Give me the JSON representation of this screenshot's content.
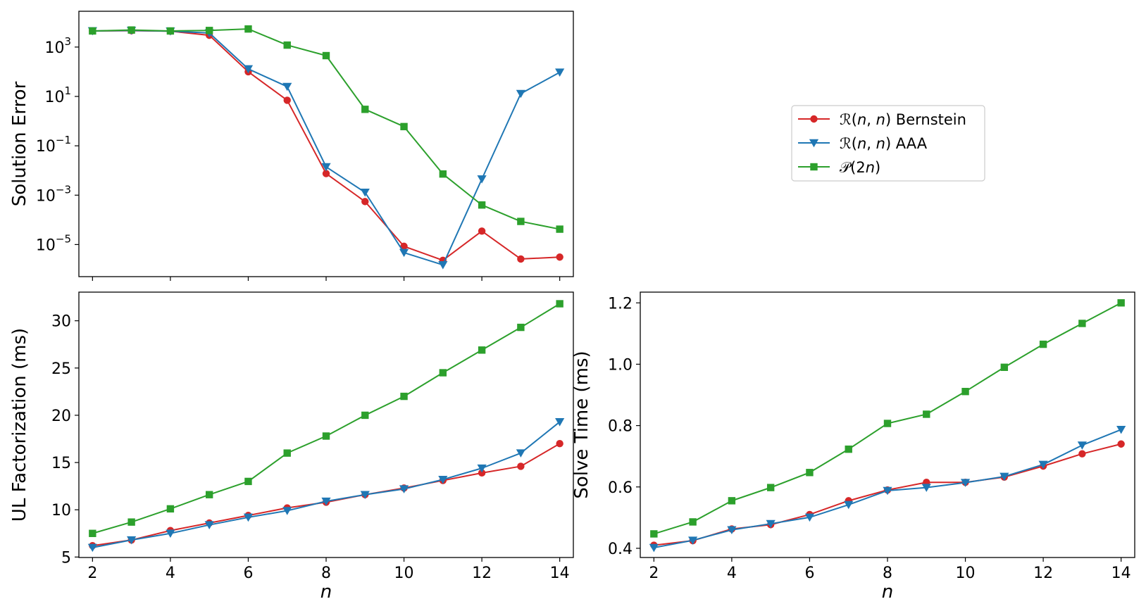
{
  "colors": {
    "bernstein": "#d62728",
    "aaa": "#1f77b4",
    "poly": "#2ca02c"
  },
  "legend": {
    "entries": [
      {
        "key": "bernstein",
        "prefix": "ℛ(",
        "italic": "n",
        "mid": ", ",
        "italic2": "n",
        "suffix": ") Bernstein",
        "marker": "circle"
      },
      {
        "key": "aaa",
        "prefix": "ℛ(",
        "italic": "n",
        "mid": ", ",
        "italic2": "n",
        "suffix": ") AAA",
        "marker": "triangle-down"
      },
      {
        "key": "poly",
        "prefix": "𝒫(2",
        "italic": "n",
        "mid": "",
        "italic2": "",
        "suffix": ")",
        "marker": "square"
      }
    ]
  },
  "chart_data": [
    {
      "id": "error",
      "type": "line",
      "yscale": "log",
      "title": "",
      "xlabel": "",
      "ylabel": "Solution Error",
      "xlim": [
        1.65,
        14.35
      ],
      "ylim_log10": [
        -6.3,
        4.45
      ],
      "x": [
        2,
        3,
        4,
        5,
        6,
        7,
        8,
        9,
        10,
        11,
        12,
        13,
        14
      ],
      "xticks": [
        2,
        4,
        6,
        8,
        10,
        12,
        14
      ],
      "show_xtick_labels": false,
      "yticks": [
        {
          "exp": 3,
          "base": "10",
          "sup": "3"
        },
        {
          "exp": 1,
          "base": "10",
          "sup": "1"
        },
        {
          "exp": -1,
          "base": "10",
          "sup": "−1"
        },
        {
          "exp": -3,
          "base": "10",
          "sup": "−3"
        },
        {
          "exp": -5,
          "base": "10",
          "sup": "−5"
        }
      ],
      "series": [
        {
          "key": "bernstein",
          "name": "ℛ(n, n) Bernstein",
          "values": [
            4500,
            4600,
            4400,
            3000,
            100,
            7,
            0.0075,
            0.00055,
            8.5e-06,
            2.3e-06,
            3.5e-05,
            2.6e-06,
            3.1e-06
          ]
        },
        {
          "key": "aaa",
          "name": "ℛ(n, n) AAA",
          "values": [
            4500,
            4700,
            4400,
            3700,
            130,
            25,
            0.014,
            0.0013,
            4.7e-06,
            1.5e-06,
            0.0045,
            13,
            95
          ]
        },
        {
          "key": "poly",
          "name": "𝒫(2n)",
          "values": [
            4500,
            4900,
            4500,
            4700,
            5400,
            1200,
            450,
            3,
            0.6,
            0.0072,
            0.0004,
            8.65e-05,
            4.2e-05
          ]
        }
      ]
    },
    {
      "id": "factorization",
      "type": "line",
      "yscale": "linear",
      "title": "",
      "xlabel": "n",
      "ylabel": "UL Factorization (ms)",
      "xlim": [
        1.65,
        14.35
      ],
      "ylim": [
        4.95,
        33.03
      ],
      "x": [
        2,
        3,
        4,
        5,
        6,
        7,
        8,
        9,
        10,
        11,
        12,
        13,
        14
      ],
      "xticks": [
        2,
        4,
        6,
        8,
        10,
        12,
        14
      ],
      "show_xtick_labels": true,
      "yticks": [
        5,
        10,
        15,
        20,
        25,
        30
      ],
      "series": [
        {
          "key": "bernstein",
          "name": "ℛ(n, n) Bernstein",
          "values": [
            6.2,
            6.8,
            7.8,
            8.6,
            9.4,
            10.2,
            10.8,
            11.6,
            12.3,
            13.1,
            13.9,
            14.6,
            17.0
          ]
        },
        {
          "key": "aaa",
          "name": "ℛ(n, n) AAA",
          "values": [
            6.0,
            6.8,
            7.5,
            8.4,
            9.2,
            9.9,
            10.9,
            11.6,
            12.2,
            13.2,
            14.4,
            16.0,
            19.3
          ]
        },
        {
          "key": "poly",
          "name": "𝒫(2n)",
          "values": [
            7.5,
            8.7,
            10.1,
            11.6,
            13.0,
            16.0,
            17.8,
            20.0,
            22.0,
            24.5,
            26.9,
            29.3,
            31.8
          ]
        }
      ]
    },
    {
      "id": "solve",
      "type": "line",
      "yscale": "linear",
      "title": "",
      "xlabel": "n",
      "ylabel": "Solve Time (ms)",
      "xlim": [
        1.65,
        14.35
      ],
      "ylim": [
        0.37,
        1.235
      ],
      "x": [
        2,
        3,
        4,
        5,
        6,
        7,
        8,
        9,
        10,
        11,
        12,
        13,
        14
      ],
      "xticks": [
        2,
        4,
        6,
        8,
        10,
        12,
        14
      ],
      "show_xtick_labels": true,
      "yticks": [
        0.4,
        0.6,
        0.8,
        1.0,
        1.2
      ],
      "ytick_labels": [
        "0.4",
        "0.6",
        "0.8",
        "1.0",
        "1.2"
      ],
      "series": [
        {
          "key": "bernstein",
          "name": "ℛ(n, n) Bernstein",
          "values": [
            0.41,
            0.425,
            0.463,
            0.477,
            0.51,
            0.555,
            0.59,
            0.615,
            0.615,
            0.632,
            0.668,
            0.708,
            0.74
          ]
        },
        {
          "key": "aaa",
          "name": "ℛ(n, n) AAA",
          "values": [
            0.402,
            0.426,
            0.46,
            0.48,
            0.501,
            0.542,
            0.588,
            0.598,
            0.614,
            0.634,
            0.673,
            0.736,
            0.787
          ]
        },
        {
          "key": "poly",
          "name": "𝒫(2n)",
          "values": [
            0.447,
            0.486,
            0.555,
            0.598,
            0.647,
            0.723,
            0.807,
            0.837,
            0.911,
            0.99,
            1.065,
            1.133,
            1.2
          ]
        }
      ]
    }
  ]
}
